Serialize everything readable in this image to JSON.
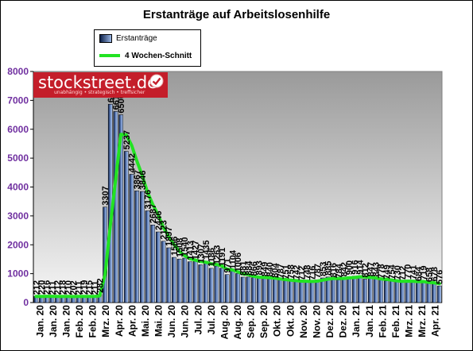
{
  "chart_data": {
    "type": "bar",
    "title": "Erstanträge auf Arbeitslosenhilfe",
    "ylim": [
      0,
      8000
    ],
    "yticks": [
      "0",
      "1000",
      "2000",
      "3000",
      "4000",
      "5000",
      "6000",
      "7000",
      "8000"
    ],
    "legend_position": "top-left",
    "grid": false,
    "xlabels": [
      "Jan. 20",
      "Jan. 20",
      "Jan. 20",
      "Feb. 20",
      "Feb. 20",
      "Mrz. 20",
      "Apr. 20",
      "Apr. 20",
      "Mai. 20",
      "Mai. 20",
      "Jun. 20",
      "Jun. 20",
      "Jul. 20",
      "Jul. 20",
      "Aug. 20",
      "Aug. 20",
      "Sep. 20",
      "Sep. 20",
      "Okt. 20",
      "Okt. 20",
      "Nov. 20",
      "Nov. 20",
      "Dez. 20",
      "Dez. 20",
      "Jan. 21",
      "Jan. 21",
      "Feb. 21",
      "Feb. 21",
      "Mrz. 21",
      "Mrz. 21",
      "Apr. 21"
    ],
    "series": [
      {
        "name": "Erstanträge",
        "values": [
          212,
          220,
          216,
          211,
          212,
          218,
          210,
          202,
          211,
          219,
          215,
          211,
          282,
          3307,
          6867,
          6615,
          6500,
          5237,
          4442,
          3867,
          3846,
          3176,
          2687,
          2446,
          2123,
          1897,
          1566,
          1508,
          1540,
          1413,
          1427,
          1307,
          1435,
          1186,
          1263,
          1191,
          971,
          1104,
          1006,
          881,
          884,
          866,
          893,
          849,
          840,
          804,
          787,
          751,
          758,
          742,
          712,
          748,
          716,
          787,
          853,
          885,
          816,
          784,
          842,
          900,
          916,
          914,
          812,
          847,
          843,
          778,
          749,
          754,
          730,
          712,
          770,
          741,
          684,
          719,
          658,
          678,
          576
        ],
        "labels": [
          "212",
          "220",
          "216",
          "211",
          "212",
          "218",
          "210",
          "202",
          "211",
          "219",
          "215",
          "211",
          "282",
          "3307",
          "6867",
          "6615",
          "6500",
          "5237",
          "4442",
          "3867",
          "3846",
          "3176",
          "2687",
          "2446",
          "2123",
          "1897",
          "1566",
          "1508",
          "1540",
          "1413",
          "1427",
          "1307",
          "1435",
          "1186",
          "1263",
          "1191",
          "971",
          "1104",
          "1006",
          "881",
          "884",
          "866",
          "893",
          "849",
          "840",
          "804",
          "787",
          "751",
          "758",
          "742",
          "712",
          "748",
          "716",
          "787",
          "853",
          "885",
          "816",
          "784",
          "842",
          "900",
          "916",
          "914",
          "812",
          "847",
          "843",
          "778",
          "749",
          "754",
          "730",
          "712",
          "770",
          "741",
          "684",
          "719",
          "658",
          "678",
          "576"
        ]
      },
      {
        "name": "4 Wochen-Schnitt",
        "values": [
          215,
          215,
          216,
          217,
          215,
          214,
          213,
          210,
          211,
          212,
          213,
          214,
          232,
          954,
          2671,
          4273,
          5822,
          5805,
          5449,
          4899,
          4407,
          3820,
          3394,
          3038,
          2608,
          2288,
          2008,
          1776,
          1628,
          1518,
          1470,
          1420,
          1396,
          1341,
          1323,
          1269,
          1153,
          1132,
          1068,
          991,
          969,
          909,
          881,
          873,
          862,
          847,
          820,
          796,
          775,
          760,
          741,
          740,
          730,
          741,
          776,
          810,
          835,
          835,
          837,
          856,
          866,
          894,
          886,
          872,
          854,
          820,
          804,
          781,
          753,
          736,
          741,
          739,
          727,
          729,
          700,
          685,
          658
        ]
      }
    ]
  }
}
